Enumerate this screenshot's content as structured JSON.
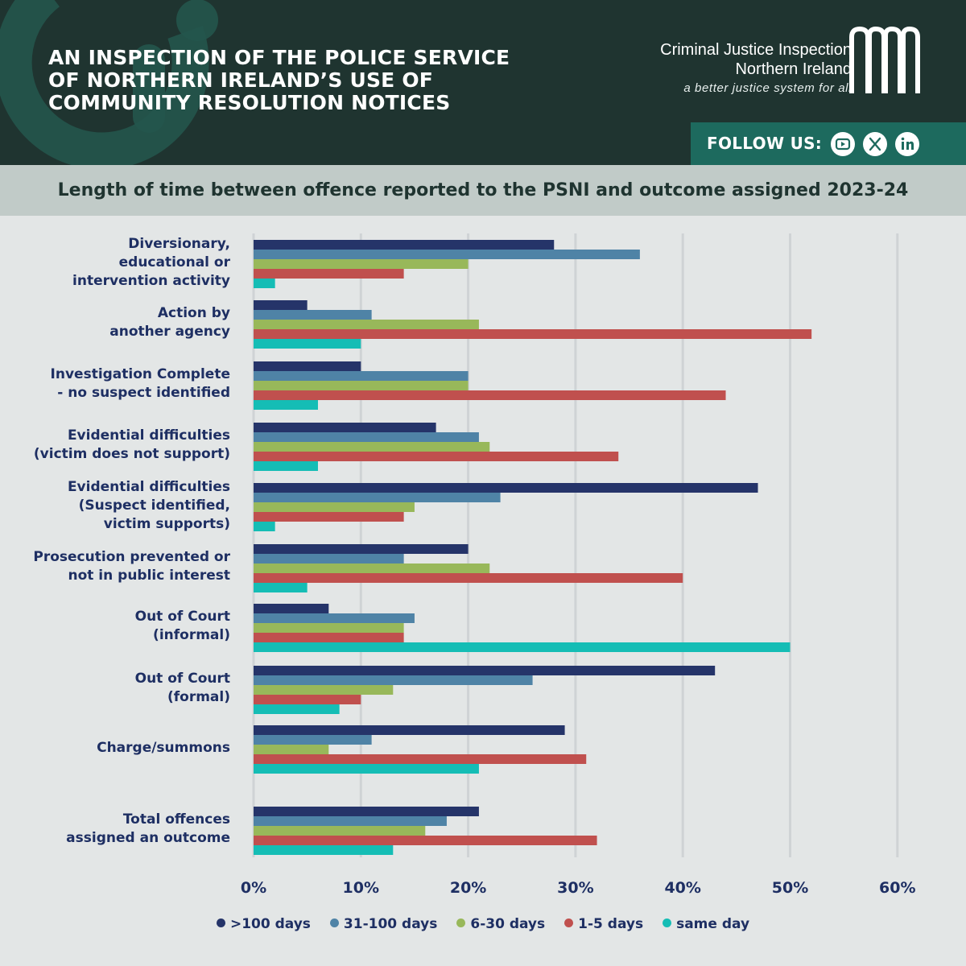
{
  "header": {
    "title_lines": [
      "AN INSPECTION OF THE POLICE SERVICE",
      "OF NORTHERN IRELAND’S USE OF",
      "COMMUNITY RESOLUTION NOTICES"
    ],
    "org_line1": "Criminal Justice Inspection",
    "org_line2": "Northern Ireland",
    "tagline": "a better justice system for all",
    "follow_label": "FOLLOW US:",
    "social_icons": [
      "youtube-icon",
      "x-icon",
      "linkedin-icon"
    ]
  },
  "colors": {
    "header_bg": "#1f3430",
    "follow_bg": "#1d6a5e",
    "navy": "#253469",
    "steel": "#4f83a6",
    "green": "#98b85a",
    "red": "#c0504e",
    "teal": "#15bdb5",
    "label": "#1e2f63"
  },
  "chart_data": {
    "type": "bar",
    "orientation": "horizontal",
    "title": "Length of time between offence reported to the PSNI and outcome assigned 2023-24",
    "categories": [
      [
        "Diversionary,",
        "educational or",
        "intervention activity"
      ],
      [
        "Action by",
        "another agency"
      ],
      [
        "Investigation Complete",
        "- no suspect identified"
      ],
      [
        "Evidential difficulties",
        "(victim does not support)"
      ],
      [
        "Evidential difficulties",
        "(Suspect identified,",
        "victim supports)"
      ],
      [
        "Prosecution prevented or",
        "not in public interest"
      ],
      [
        "Out of Court",
        "(informal)"
      ],
      [
        "Out of Court",
        "(formal)"
      ],
      [
        "Charge/summons"
      ],
      [
        "Total offences",
        "assigned an outcome"
      ]
    ],
    "series": [
      {
        "name": ">100 days",
        "color": "#253469",
        "values": [
          28,
          5,
          10,
          17,
          47,
          20,
          7,
          43,
          29,
          21
        ]
      },
      {
        "name": "31-100 days",
        "color": "#4f83a6",
        "values": [
          36,
          11,
          20,
          21,
          23,
          14,
          15,
          26,
          11,
          18
        ]
      },
      {
        "name": "6-30 days",
        "color": "#98b85a",
        "values": [
          20,
          21,
          20,
          22,
          15,
          22,
          14,
          13,
          7,
          16
        ]
      },
      {
        "name": "1-5 days",
        "color": "#c0504e",
        "values": [
          14,
          52,
          44,
          34,
          14,
          40,
          14,
          10,
          31,
          32
        ]
      },
      {
        "name": "same day",
        "color": "#15bdb5",
        "values": [
          2,
          10,
          6,
          6,
          2,
          5,
          50,
          8,
          21,
          13
        ]
      }
    ],
    "xlim": [
      0,
      60
    ],
    "xticks": [
      "0%",
      "10%",
      "20%",
      "30%",
      "40%",
      "50%",
      "60%"
    ],
    "xtick_values": [
      0,
      10,
      20,
      30,
      40,
      50,
      60
    ],
    "grid": true,
    "legend": "bottom"
  }
}
